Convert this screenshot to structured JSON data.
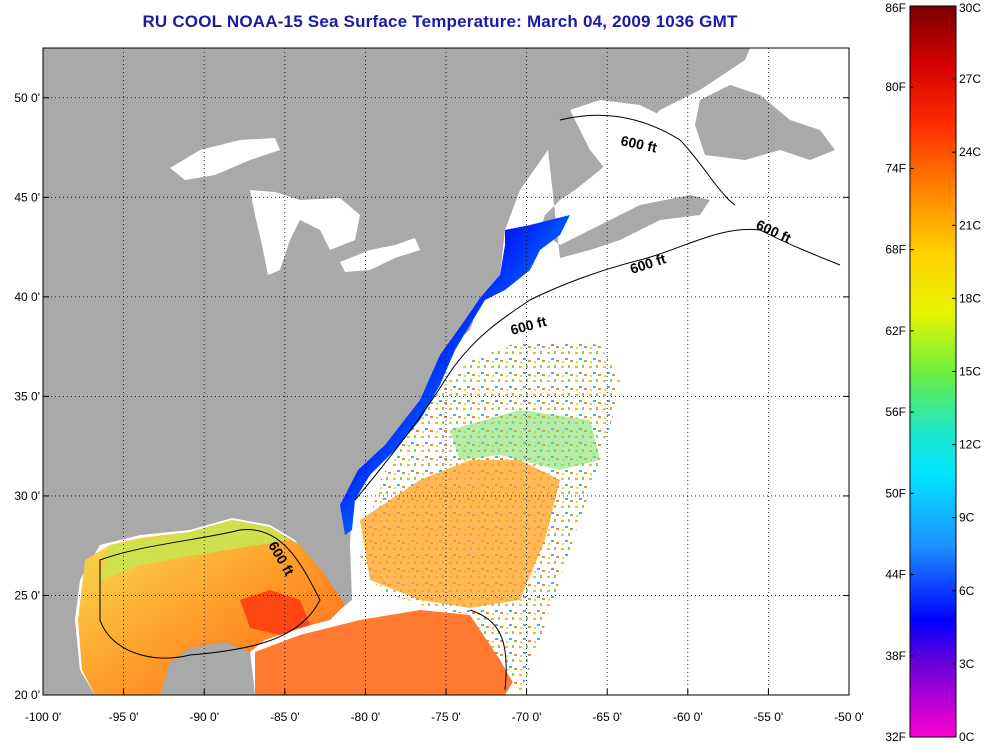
{
  "title": "RU COOL  NOAA-15  Sea Surface Temperature:  March 04, 2009 1036 GMT",
  "map": {
    "x_ticks": [
      "-100 0'",
      "-95 0'",
      "-90 0'",
      "-85 0'",
      "-80 0'",
      "-75 0'",
      "-70 0'",
      "-65 0'",
      "-60 0'",
      "-55 0'",
      "-50 0'"
    ],
    "y_ticks": [
      "50 0'",
      "45 0'",
      "40 0'",
      "35 0'",
      "30 0'",
      "25 0'",
      "20 0'"
    ],
    "lon_range": [
      -100,
      -50
    ],
    "lat_range": [
      20,
      52.5
    ],
    "contour_labels": [
      "600 ft",
      "600 ft",
      "600 ft",
      "600 ft",
      "600 ft"
    ],
    "colors": {
      "land": "#a9a9a9",
      "frame": "#000000"
    }
  },
  "colorbar": {
    "fahrenheit_labels": [
      "86F",
      "80F",
      "74F",
      "68F",
      "62F",
      "56F",
      "50F",
      "44F",
      "38F",
      "32F"
    ],
    "celsius_labels": [
      "30C",
      "27C",
      "24C",
      "21C",
      "18C",
      "15C",
      "12C",
      "9C",
      "6C",
      "3C",
      "0C"
    ]
  }
}
